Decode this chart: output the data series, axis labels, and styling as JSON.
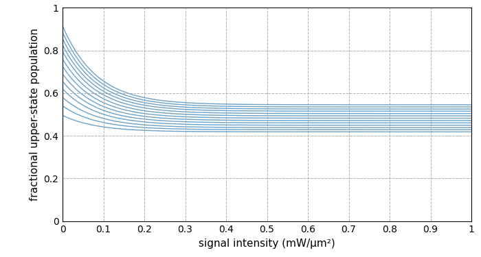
{
  "title": "",
  "xlabel": "signal intensity (mW/μm²)",
  "ylabel": "fractional upper-state population",
  "xlim": [
    0,
    1.0
  ],
  "ylim": [
    0,
    1.0
  ],
  "xticks": [
    0,
    0.1,
    0.2,
    0.3,
    0.4,
    0.5,
    0.6,
    0.7,
    0.8,
    0.9,
    1.0
  ],
  "yticks": [
    0,
    0.2,
    0.4,
    0.6,
    0.8,
    1.0
  ],
  "line_color": "#6CA0C8",
  "background_color": "#ffffff",
  "grid_color": "#B0B0B0",
  "num_curves": 13,
  "y0_values": [
    0.915,
    0.885,
    0.855,
    0.825,
    0.795,
    0.76,
    0.725,
    0.69,
    0.655,
    0.62,
    0.58,
    0.54,
    0.495
  ],
  "y_inf_values": [
    0.545,
    0.535,
    0.525,
    0.515,
    0.504,
    0.493,
    0.482,
    0.471,
    0.46,
    0.449,
    0.438,
    0.428,
    0.418
  ],
  "decay_rates": [
    12.0,
    12.0,
    12.0,
    12.0,
    12.0,
    12.0,
    12.0,
    12.0,
    12.0,
    12.0,
    12.0,
    12.0,
    12.0
  ]
}
